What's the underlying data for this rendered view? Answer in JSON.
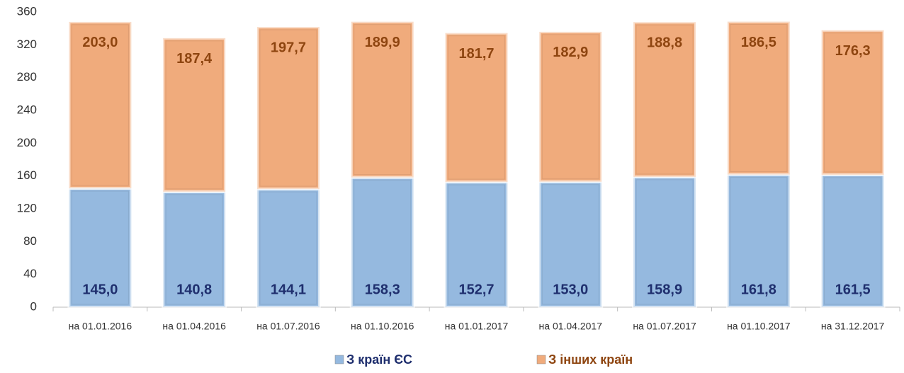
{
  "chart_data": {
    "type": "stacked_bar",
    "categories": [
      "на 01.01.2016",
      "на 01.04.2016",
      "на 01.07.2016",
      "на 01.10.2016",
      "на 01.01.2017",
      "на 01.04.2017",
      "на 01.07.2017",
      "на 01.10.2017",
      "на 31.12.2017"
    ],
    "series": [
      {
        "name": "З країн ЄС",
        "color": "#95b9df",
        "label_color": "#1f2f6e",
        "values": [
          145.0,
          140.8,
          144.1,
          158.3,
          152.7,
          153.0,
          158.9,
          161.8,
          161.5
        ],
        "value_labels": [
          "145,0",
          "140,8",
          "144,1",
          "158,3",
          "152,7",
          "153,0",
          "158,9",
          "161,8",
          "161,5"
        ]
      },
      {
        "name": "З інших країн",
        "color": "#f0ab7c",
        "label_color": "#8e4510",
        "values": [
          203.0,
          187.4,
          197.7,
          189.9,
          181.7,
          182.9,
          188.8,
          186.5,
          176.3
        ],
        "value_labels": [
          "203,0",
          "187,4",
          "197,7",
          "189,9",
          "181,7",
          "182,9",
          "188,8",
          "186,5",
          "176,3"
        ]
      }
    ],
    "ylim": [
      0,
      360
    ],
    "yticks": [
      0,
      40,
      80,
      120,
      160,
      200,
      240,
      280,
      320,
      360
    ],
    "grid": false,
    "legend": "bottom"
  }
}
